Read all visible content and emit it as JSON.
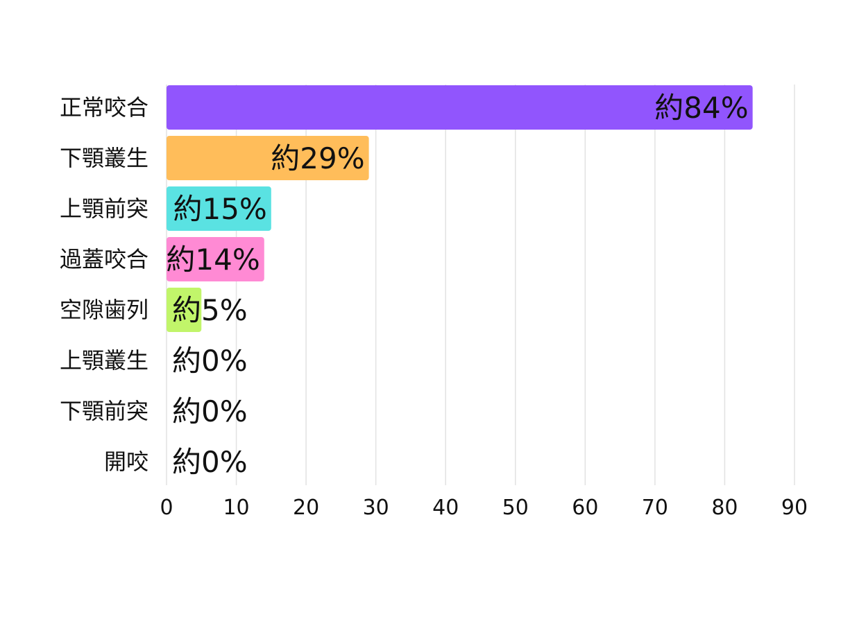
{
  "chart_data": {
    "type": "bar",
    "orientation": "horizontal",
    "title": "",
    "xlabel": "",
    "ylabel": "",
    "categories": [
      "正常咬合",
      "下顎叢生",
      "上顎前突",
      "過蓋咬合",
      "空隙歯列",
      "上顎叢生",
      "下顎前突",
      "開咬"
    ],
    "values": [
      84,
      29,
      15,
      14,
      5,
      0,
      0,
      0
    ],
    "data_labels": [
      "約84%",
      "約29%",
      "約15%",
      "約14%",
      "約5%",
      "約0%",
      "約0%",
      "約0%"
    ],
    "colors": [
      "#9155fd",
      "#ffbd5a",
      "#5ae2e2",
      "#ff8ad4",
      "#c1f56a",
      "#cccccc",
      "#cccccc",
      "#cccccc"
    ],
    "xlim": [
      0,
      90
    ],
    "xticks": [
      "0",
      "10",
      "20",
      "30",
      "40",
      "50",
      "60",
      "70",
      "80",
      "90"
    ],
    "grid": true,
    "legend": "none"
  }
}
